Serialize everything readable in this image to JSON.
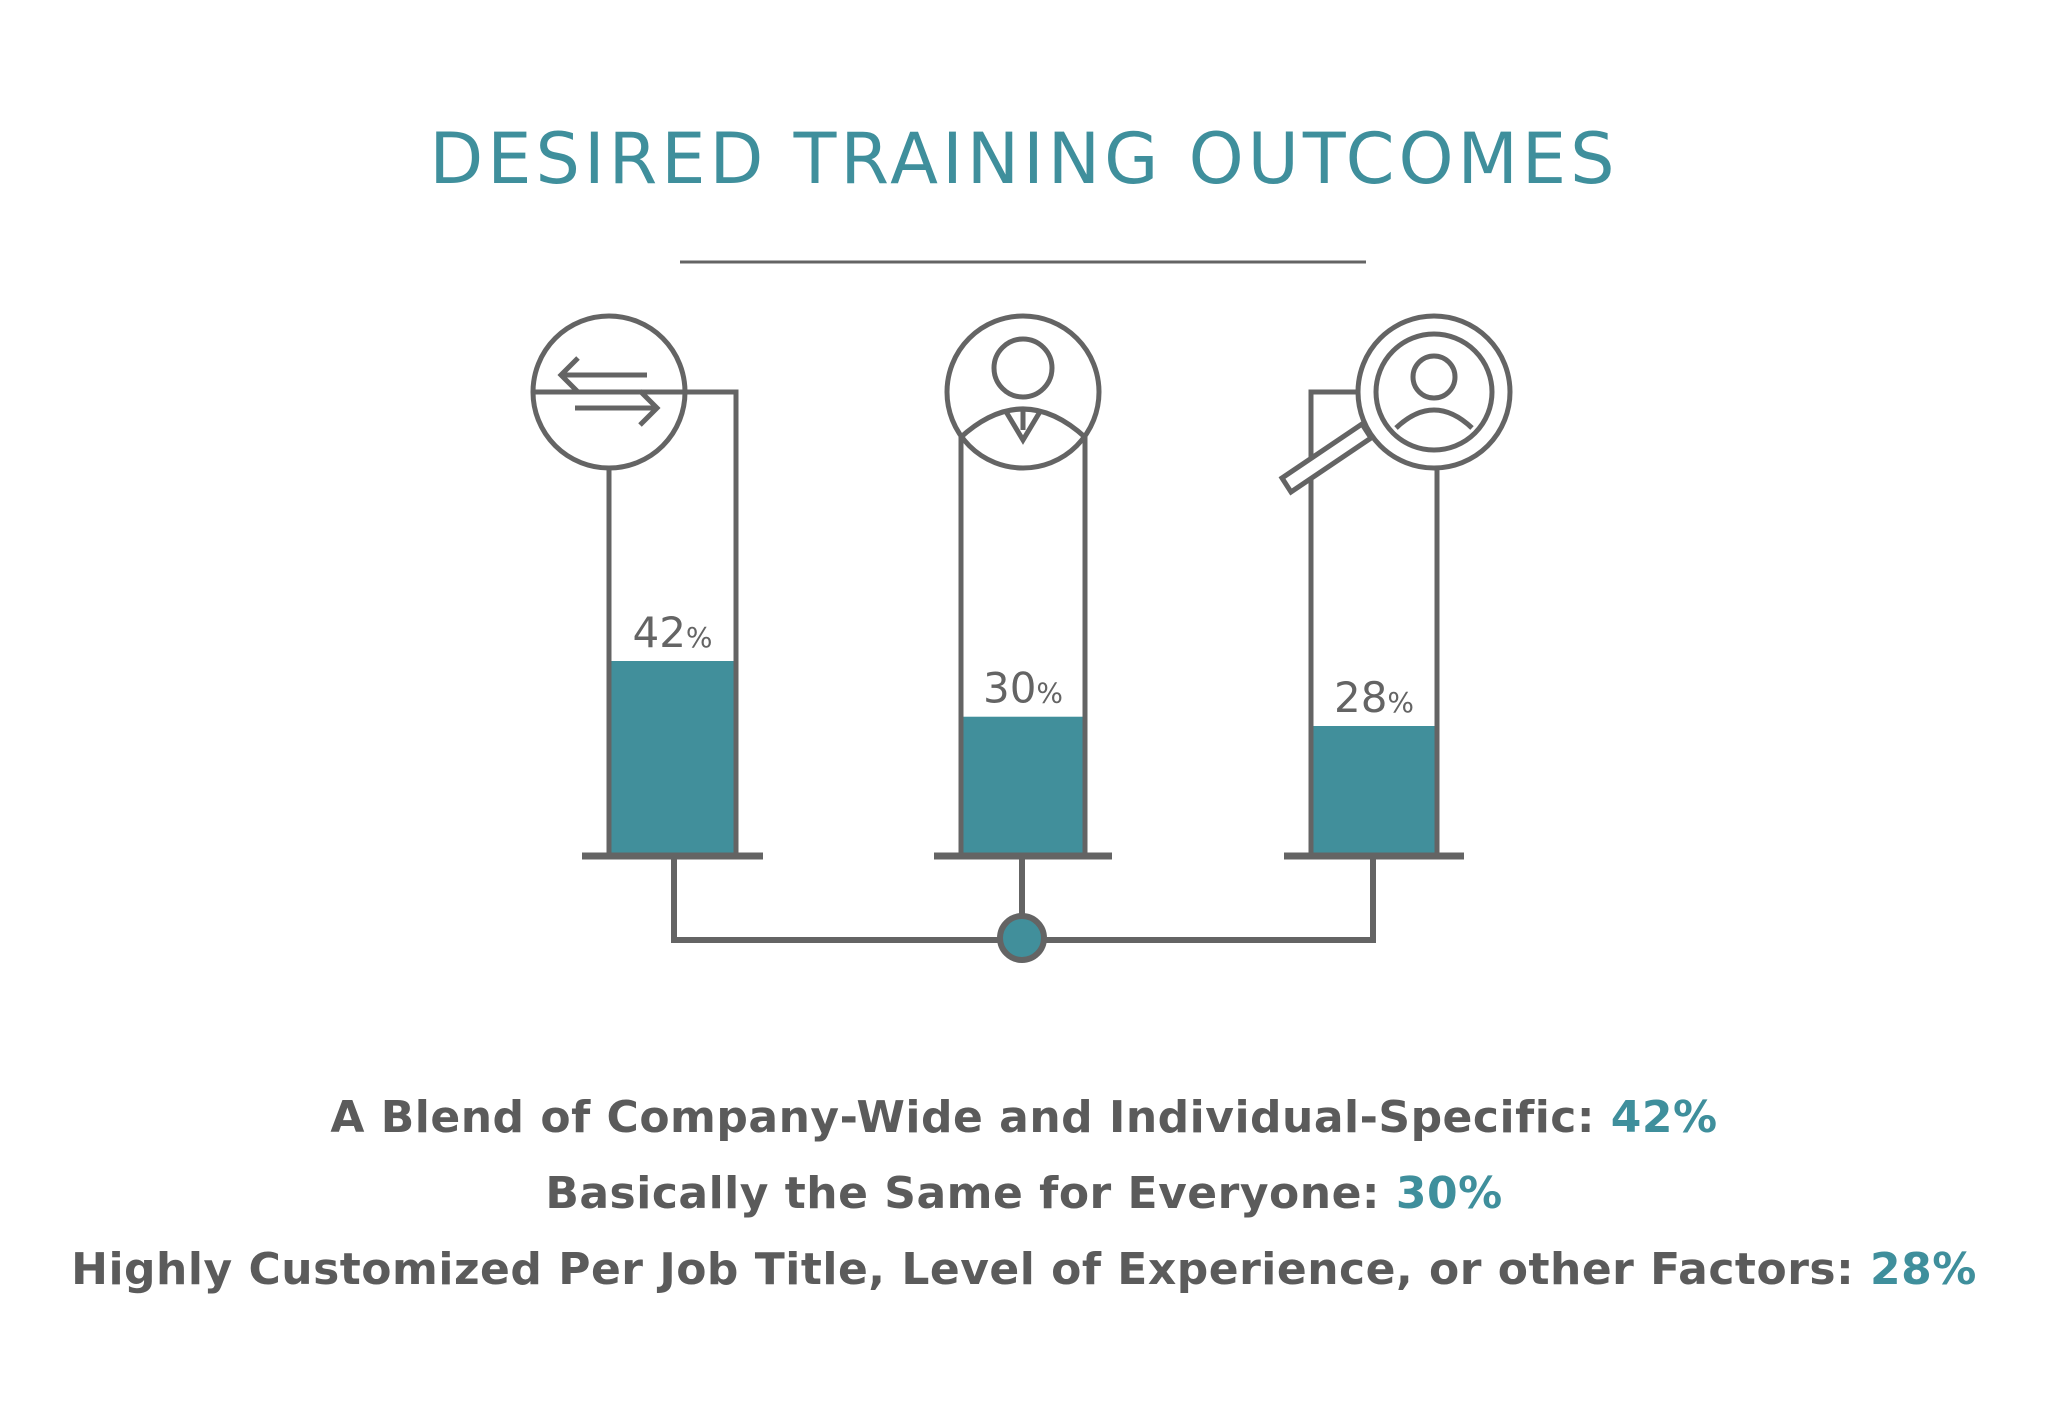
{
  "colors": {
    "accent": "#418f9b",
    "stroke": "#646464",
    "text": "#5b5b5b"
  },
  "chart_data": {
    "type": "bar",
    "title": "DESIRED TRAINING OUTCOMES",
    "categories": [
      "A Blend of Company-Wide and Individual-Specific",
      "Basically the Same for Everyone",
      "Highly Customized Per Job Title, Level of Experience, or other Factors"
    ],
    "values": [
      42,
      30,
      28
    ],
    "value_labels": [
      "42",
      "30",
      "28"
    ],
    "value_suffix": "%",
    "ylim": [
      0,
      100
    ],
    "icons": [
      "exchange-arrows-icon",
      "businessman-icon",
      "person-search-icon"
    ],
    "legend": [
      {
        "label": "A Blend of Company-Wide and Individual-Specific:",
        "value": "42%"
      },
      {
        "label": "Basically the Same for Everyone:",
        "value": "30%"
      },
      {
        "label": "Highly Customized Per Job Title, Level of Experience, or other Factors:",
        "value": "28%"
      }
    ]
  }
}
